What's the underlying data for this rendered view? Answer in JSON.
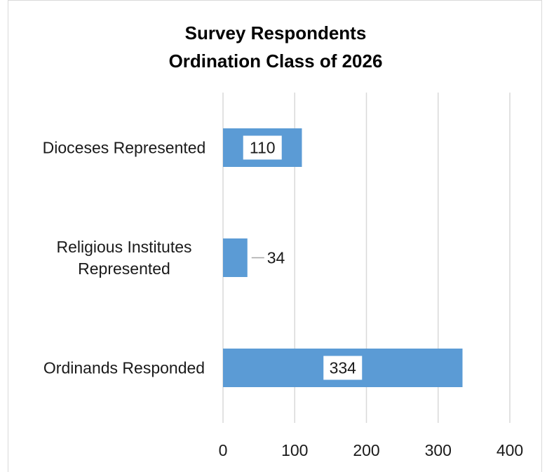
{
  "chart_data": {
    "type": "bar",
    "orientation": "horizontal",
    "title_lines": [
      "Survey Respondents",
      "Ordination Class of 2026"
    ],
    "categories": [
      "Dioceses Represented",
      "Religious Institutes Represented",
      "Ordinands Responded"
    ],
    "category_lines": [
      [
        "Dioceses Represented"
      ],
      [
        "Religious Institutes",
        "Represented"
      ],
      [
        "Ordinands Responded"
      ]
    ],
    "values": [
      110,
      34,
      334
    ],
    "xlim": [
      0,
      400
    ],
    "x_ticks": [
      0,
      100,
      200,
      300,
      400
    ],
    "grid": true,
    "bar_color": "#5b9bd5",
    "grid_color": "#d9d9d9"
  }
}
